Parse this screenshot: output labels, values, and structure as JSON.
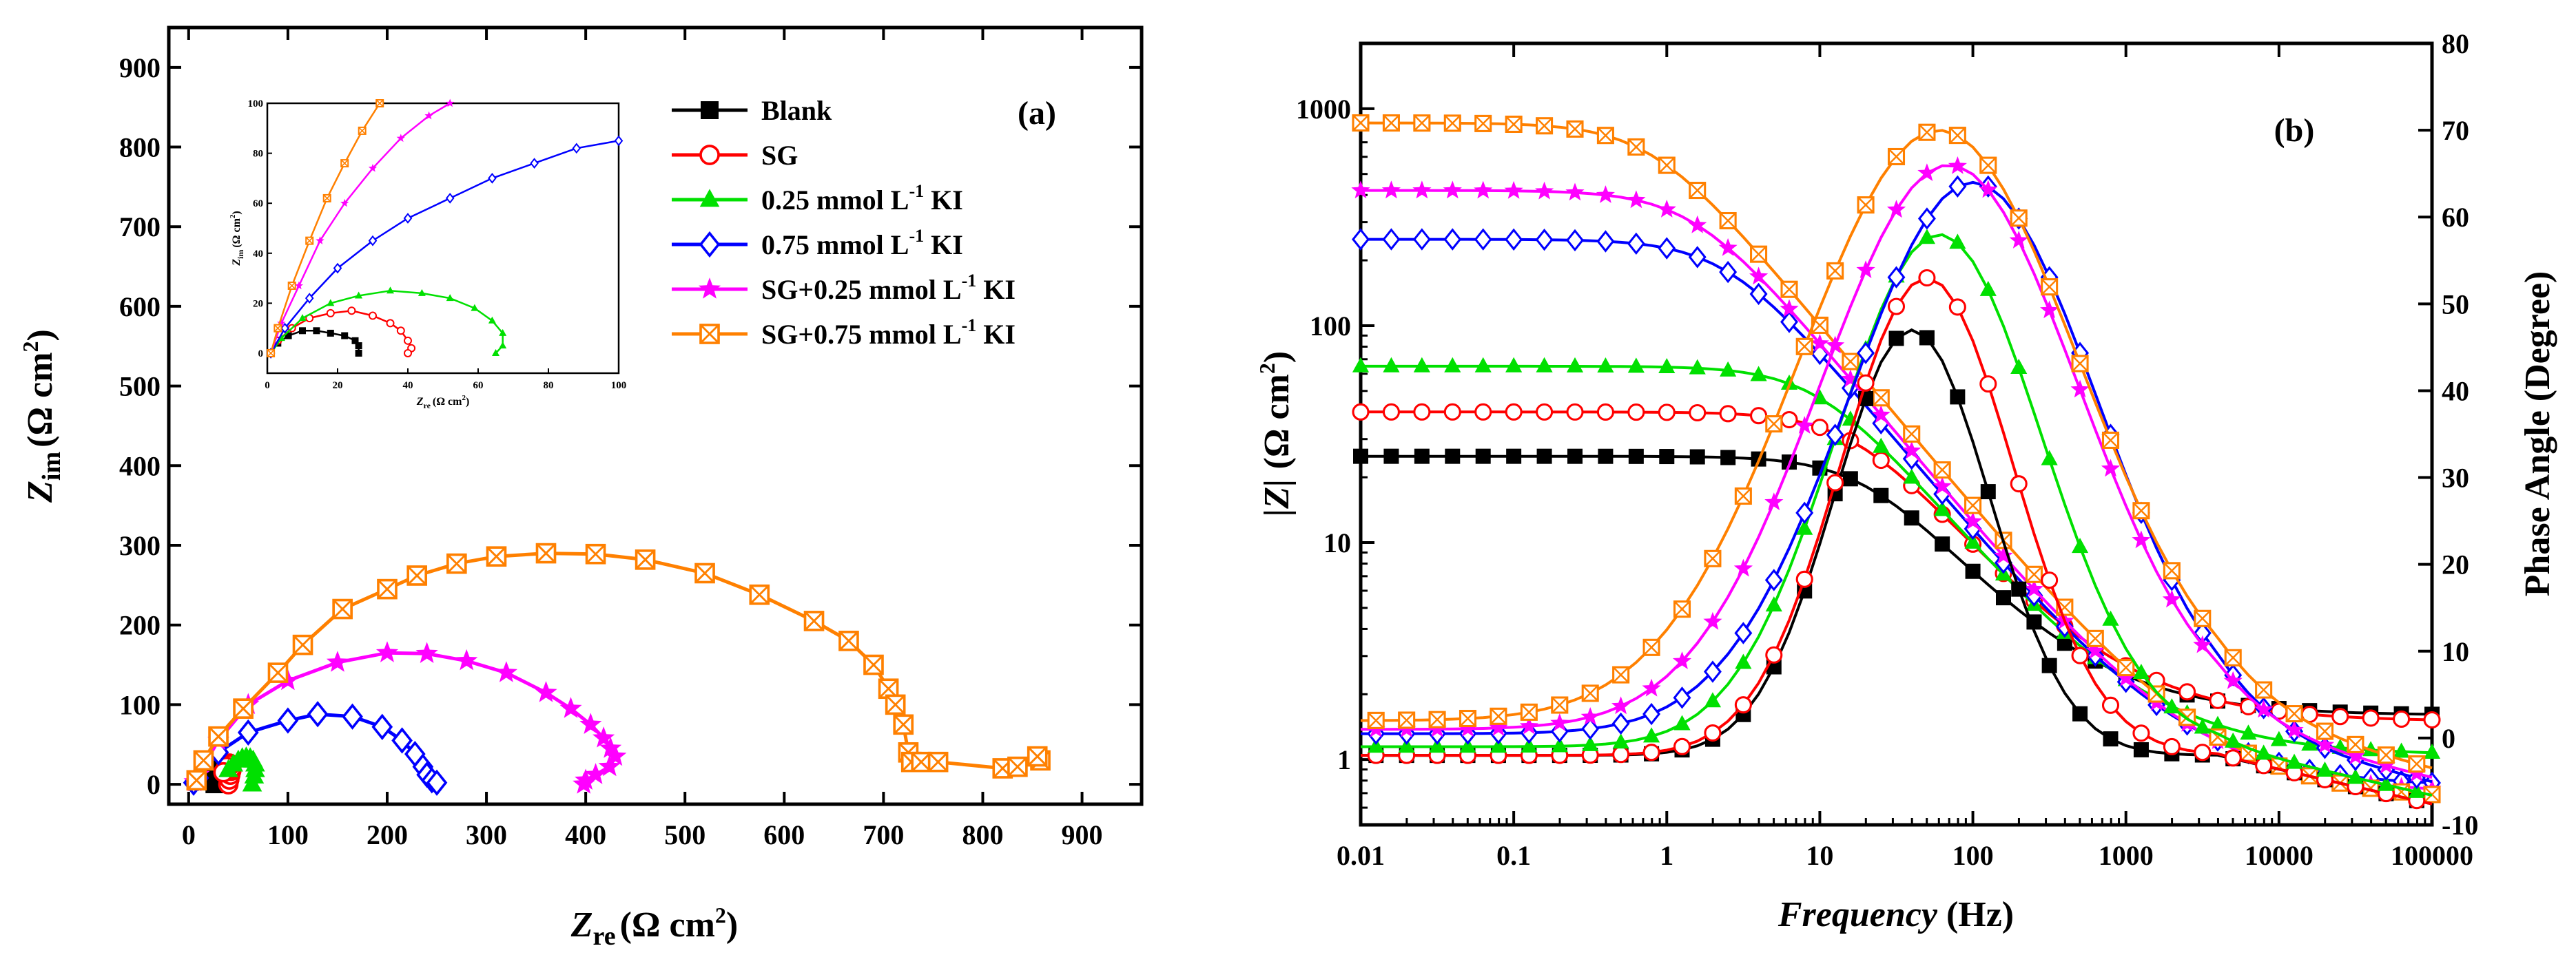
{
  "colors": {
    "Blank": "#000000",
    "SG": "#ff0000",
    "KI025": "#00e000",
    "KI075": "#0000ff",
    "SGKI025": "#ff00ff",
    "SGKI075": "#ff8000"
  },
  "chart_data": [
    {
      "type": "scatter",
      "title": "",
      "panel_label": "(a)",
      "xlabel": "Zre (Ω cm2)",
      "ylabel": "Zim (Ω cm2)",
      "xlim": [
        -20,
        960
      ],
      "ylim": [
        -25,
        950
      ],
      "xticks": [
        0,
        100,
        200,
        300,
        400,
        500,
        600,
        700,
        800,
        900
      ],
      "yticks": [
        0,
        100,
        200,
        300,
        400,
        500,
        600,
        700,
        800,
        900
      ],
      "legend_position": "top-right",
      "legend": [
        "Blank",
        "SG",
        "0.25 mmol L-1 KI",
        "0.75 mmol L-1 KI",
        "SG+0.25 mmol L-1 KI",
        "SG+0.75 mmol L-1 KI"
      ],
      "series": [
        {
          "name": "Blank",
          "key": "Blank",
          "marker": "square-filled",
          "points": [
            [
              26,
              0
            ],
            [
              27,
              5
            ],
            [
              28,
              10
            ],
            [
              29,
              14
            ],
            [
              30,
              17
            ],
            [
              30,
              20
            ],
            [
              29,
              22
            ],
            [
              28,
              23
            ],
            [
              27,
              22
            ],
            [
              25,
              18
            ],
            [
              23,
              12
            ]
          ]
        },
        {
          "name": "SG",
          "key": "SG",
          "marker": "circle-open",
          "points": [
            [
              40,
              0
            ],
            [
              41,
              6
            ],
            [
              42,
              12
            ],
            [
              43,
              17
            ],
            [
              43,
              20
            ],
            [
              42,
              24
            ],
            [
              41,
              26
            ],
            [
              40,
              25
            ],
            [
              38,
              22
            ],
            [
              35,
              15
            ]
          ]
        },
        {
          "name": "0.25 mmol L-1 KI",
          "key": "KI025",
          "marker": "triangle-filled",
          "points": [
            [
              64,
              0
            ],
            [
              66,
              10
            ],
            [
              67,
              18
            ],
            [
              67,
              25
            ],
            [
              65,
              30
            ],
            [
              62,
              33
            ],
            [
              58,
              34
            ],
            [
              54,
              33
            ],
            [
              50,
              30
            ],
            [
              45,
              25
            ],
            [
              40,
              18
            ]
          ]
        },
        {
          "name": "0.75 mmol L-1 KI",
          "key": "KI075",
          "marker": "diamond-open",
          "points": [
            [
              5,
              2
            ],
            [
              10,
              8
            ],
            [
              30,
              40
            ],
            [
              60,
              65
            ],
            [
              100,
              80
            ],
            [
              130,
              88
            ],
            [
              165,
              85
            ],
            [
              195,
              72
            ],
            [
              215,
              55
            ],
            [
              228,
              38
            ],
            [
              236,
              22
            ],
            [
              240,
              12
            ],
            [
              245,
              5
            ],
            [
              250,
              2
            ]
          ]
        },
        {
          "name": "SG+0.25 mmol L-1 KI",
          "key": "SGKI025",
          "marker": "star-filled",
          "points": [
            [
              6,
              3
            ],
            [
              10,
              12
            ],
            [
              30,
              55
            ],
            [
              60,
              100
            ],
            [
              100,
              130
            ],
            [
              150,
              153
            ],
            [
              200,
              165
            ],
            [
              240,
              164
            ],
            [
              280,
              155
            ],
            [
              320,
              140
            ],
            [
              360,
              115
            ],
            [
              385,
              95
            ],
            [
              405,
              75
            ],
            [
              418,
              58
            ],
            [
              425,
              45
            ],
            [
              430,
              35
            ],
            [
              424,
              22
            ],
            [
              410,
              12
            ],
            [
              400,
              5
            ],
            [
              398,
              0
            ]
          ]
        },
        {
          "name": "SG+0.75 mmol L-1 KI",
          "key": "SGKI075",
          "marker": "square-x",
          "points": [
            [
              8,
              5
            ],
            [
              15,
              30
            ],
            [
              30,
              60
            ],
            [
              55,
              95
            ],
            [
              90,
              140
            ],
            [
              115,
              175
            ],
            [
              155,
              220
            ],
            [
              200,
              245
            ],
            [
              230,
              262
            ],
            [
              270,
              277
            ],
            [
              310,
              286
            ],
            [
              360,
              290
            ],
            [
              410,
              289
            ],
            [
              460,
              282
            ],
            [
              520,
              265
            ],
            [
              575,
              238
            ],
            [
              630,
              205
            ],
            [
              665,
              180
            ],
            [
              690,
              150
            ],
            [
              705,
              120
            ],
            [
              712,
              100
            ],
            [
              720,
              75
            ],
            [
              725,
              40
            ],
            [
              728,
              28
            ],
            [
              738,
              28
            ],
            [
              755,
              28
            ],
            [
              820,
              20
            ],
            [
              835,
              22
            ],
            [
              858,
              30
            ],
            [
              855,
              35
            ]
          ]
        }
      ],
      "inset": {
        "xlim": [
          0,
          100
        ],
        "ylim": [
          -8,
          100
        ],
        "xticks": [
          0,
          20,
          40,
          60,
          80,
          100
        ],
        "yticks": [
          0,
          20,
          40,
          60,
          80,
          100
        ],
        "xlabel": "Zre (Ω cm2)",
        "ylabel": "Zim (Ω cm2)",
        "series": [
          {
            "key": "Blank",
            "points": [
              [
                1,
                0
              ],
              [
                3,
                4
              ],
              [
                6,
                7
              ],
              [
                10,
                9
              ],
              [
                14,
                9
              ],
              [
                18,
                8
              ],
              [
                22,
                7
              ],
              [
                25,
                5
              ],
              [
                26,
                3
              ],
              [
                26,
                0
              ]
            ]
          },
          {
            "key": "SG",
            "points": [
              [
                1,
                0
              ],
              [
                3,
                5
              ],
              [
                7,
                10
              ],
              [
                12,
                14
              ],
              [
                18,
                16
              ],
              [
                24,
                17
              ],
              [
                30,
                15
              ],
              [
                35,
                12
              ],
              [
                38,
                9
              ],
              [
                40,
                5
              ],
              [
                41,
                2
              ],
              [
                40,
                0
              ]
            ]
          },
          {
            "key": "KI025",
            "points": [
              [
                1,
                0
              ],
              [
                4,
                6
              ],
              [
                10,
                14
              ],
              [
                18,
                20
              ],
              [
                26,
                23
              ],
              [
                35,
                25
              ],
              [
                44,
                24
              ],
              [
                52,
                22
              ],
              [
                59,
                18
              ],
              [
                64,
                13
              ],
              [
                67,
                8
              ],
              [
                67,
                3
              ],
              [
                65,
                0
              ]
            ]
          },
          {
            "key": "KI075",
            "points": [
              [
                1,
                0
              ],
              [
                5,
                10
              ],
              [
                12,
                22
              ],
              [
                20,
                34
              ],
              [
                30,
                45
              ],
              [
                40,
                54
              ],
              [
                52,
                62
              ],
              [
                64,
                70
              ],
              [
                76,
                76
              ],
              [
                88,
                82
              ],
              [
                100,
                85
              ]
            ]
          },
          {
            "key": "SGKI025",
            "points": [
              [
                1,
                0
              ],
              [
                4,
                12
              ],
              [
                9,
                27
              ],
              [
                15,
                45
              ],
              [
                22,
                60
              ],
              [
                30,
                74
              ],
              [
                38,
                86
              ],
              [
                46,
                95
              ],
              [
                52,
                100
              ]
            ]
          },
          {
            "key": "SGKI075",
            "points": [
              [
                1,
                0
              ],
              [
                3,
                10
              ],
              [
                7,
                27
              ],
              [
                12,
                45
              ],
              [
                17,
                62
              ],
              [
                22,
                76
              ],
              [
                27,
                89
              ],
              [
                32,
                100
              ]
            ]
          }
        ]
      }
    },
    {
      "type": "scatter",
      "title": "",
      "panel_label": "(b)",
      "xlabel": "Frequency (Hz)",
      "ylabel": "|Z| (Ω cm2)",
      "y2label": "Phase Angle (Degree)",
      "xscale": "log",
      "yscale": "log",
      "xlim": [
        0.01,
        100000
      ],
      "ylim": [
        0.5,
        2000
      ],
      "y2lim": [
        -10,
        80
      ],
      "xticks": [
        "0.01",
        "0.1",
        "1",
        "10",
        "100",
        "1000",
        "10000",
        "100000"
      ],
      "yticks": [
        "1",
        "10",
        "100",
        "1000"
      ],
      "y2ticks": [
        -10,
        0,
        10,
        20,
        30,
        40,
        50,
        60,
        70,
        80
      ],
      "modulus_series": [
        {
          "key": "Blank",
          "low_z": 25,
          "rs": 1.6,
          "fc": 20
        },
        {
          "key": "SG",
          "low_z": 40,
          "rs": 1.5,
          "fc": 17
        },
        {
          "key": "KI025",
          "low_z": 65,
          "rs": 1.05,
          "fc": 10
        },
        {
          "key": "KI075",
          "low_z": 250,
          "rs": 0.75,
          "fc": 2.5
        },
        {
          "key": "SGKI025",
          "low_z": 420,
          "rs": 0.7,
          "fc": 1.5
        },
        {
          "key": "SGKI075",
          "low_z": 860,
          "rs": 0.65,
          "fc": 0.8
        }
      ],
      "phase_series": [
        {
          "key": "Blank",
          "peak": 47,
          "fpeak": 40,
          "base": -2,
          "width": 0.72
        },
        {
          "key": "SG",
          "peak": 53,
          "fpeak": 50,
          "base": -2,
          "width": 0.8
        },
        {
          "key": "KI025",
          "peak": 58,
          "fpeak": 60,
          "base": -1,
          "width": 0.95
        },
        {
          "key": "KI075",
          "peak": 64,
          "fpeak": 100,
          "base": 0.5,
          "width": 1.15
        },
        {
          "key": "SGKI025",
          "peak": 66,
          "fpeak": 70,
          "base": 1,
          "width": 1.2
        },
        {
          "key": "SGKI075",
          "peak": 70,
          "fpeak": 60,
          "base": 2,
          "width": 1.3
        }
      ]
    }
  ],
  "legend_items": [
    {
      "key": "Blank",
      "marker": "square-filled",
      "label": "Blank",
      "sup": "",
      "tail": ""
    },
    {
      "key": "SG",
      "marker": "circle-open",
      "label": "SG",
      "sup": "",
      "tail": ""
    },
    {
      "key": "KI025",
      "marker": "triangle-filled",
      "label": "0.25 mmol L",
      "sup": "-1",
      "tail": " KI"
    },
    {
      "key": "KI075",
      "marker": "diamond-open",
      "label": "0.75 mmol L",
      "sup": "-1",
      "tail": " KI"
    },
    {
      "key": "SGKI025",
      "marker": "star-filled",
      "label": "SG+0.25 mmol L",
      "sup": "-1",
      "tail": " KI"
    },
    {
      "key": "SGKI075",
      "marker": "square-x",
      "label": "SG+0.75 mmol L",
      "sup": "-1",
      "tail": " KI"
    }
  ],
  "axis_text": {
    "a_x_var": "Z",
    "a_x_sub": "re",
    "a_x_unit": "(Ω cm",
    "a_y_var": "Z",
    "a_y_sub": "im",
    "a_y_unit": "(Ω cm",
    "sup2": "2",
    "close": ")",
    "b_x_var": "Frequency",
    "b_x_unit": " (Hz)",
    "b_y_var": "|Z|",
    "b_y_unit": "(Ω cm",
    "b_y2": "Phase Angle (Degree)",
    "inset_x_var": "Z",
    "inset_x_sub": "re",
    "inset_x_unit": "(Ω cm",
    "inset_y_var": "Z",
    "inset_y_sub": "im",
    "inset_y_unit": "(Ω cm"
  }
}
